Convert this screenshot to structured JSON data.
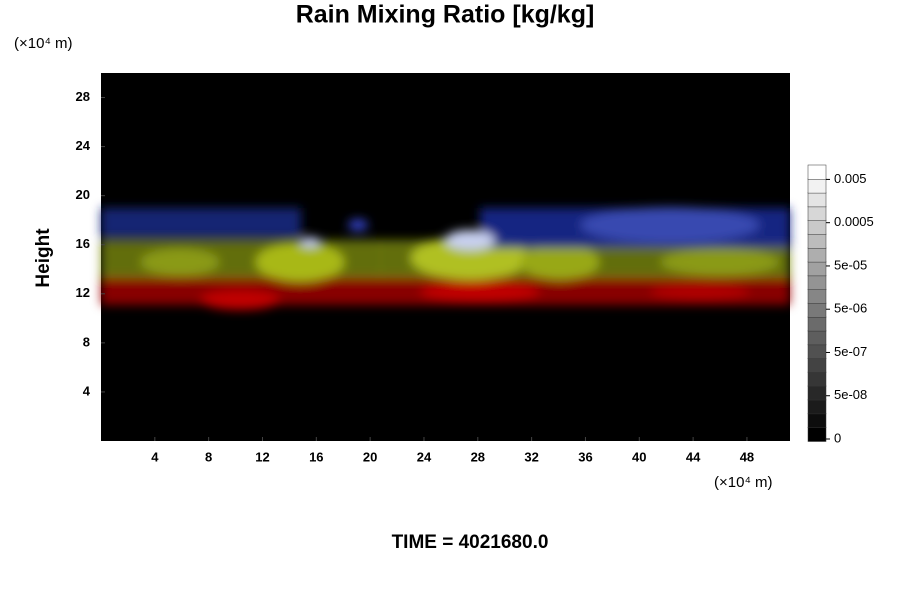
{
  "chart_data": {
    "type": "volume-render",
    "title": "Rain Mixing Ratio [kg/kg]",
    "ylabel": "Height",
    "xunit": "(×10⁴ m)",
    "yunit": "(×10⁴ m)",
    "footer": "TIME = 4021680.0",
    "xlim": [
      0,
      51.2
    ],
    "xticks": [
      4,
      8,
      12,
      16,
      20,
      24,
      28,
      32,
      36,
      40,
      44,
      48
    ],
    "ylim": [
      0,
      30
    ],
    "yticks": [
      4,
      8,
      12,
      16,
      20,
      24,
      28
    ],
    "background": "#000000",
    "colorbar": {
      "colors": [
        "#000000",
        "#ffffff"
      ],
      "ticks": [
        0,
        {
          "value": 5e-08,
          "label": "5e-08"
        },
        {
          "value": 5e-07,
          "label": "5e-07"
        },
        {
          "value": 5e-06,
          "label": "5e-06"
        },
        {
          "value": 5e-05,
          "label": "5e-05"
        },
        0.0005,
        0.005
      ]
    }
  }
}
